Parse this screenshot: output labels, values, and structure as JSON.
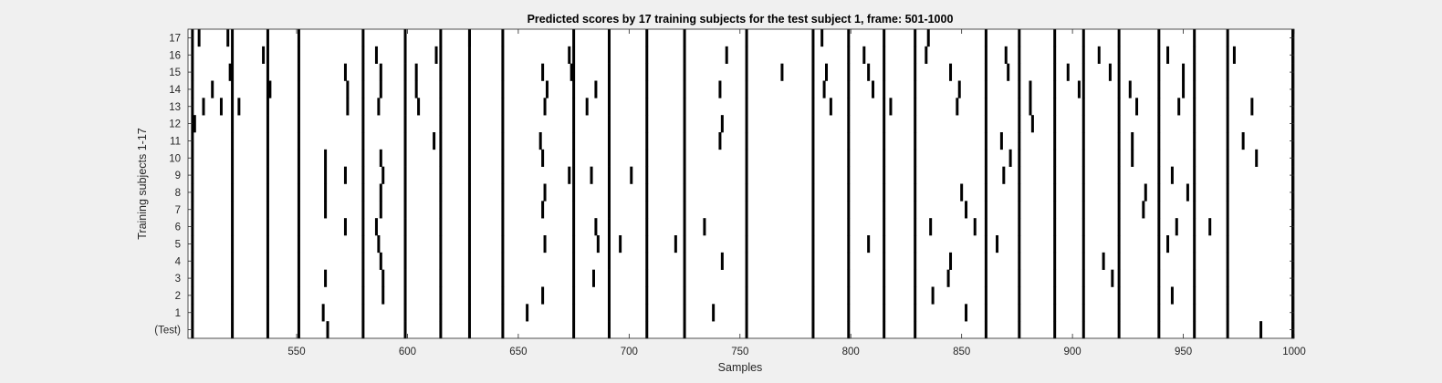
{
  "chart_data": {
    "type": "heatmap",
    "title": "Predicted scores by 17 training subjects for the test subject 1, frame: 501-1000",
    "xlabel": "Samples",
    "ylabel": "Training subjects 1-17",
    "xlim": [
      501,
      1000
    ],
    "xticks": [
      550,
      600,
      650,
      700,
      750,
      800,
      850,
      900,
      950,
      1000
    ],
    "rows": [
      "(Test)",
      "1",
      "2",
      "3",
      "4",
      "5",
      "6",
      "7",
      "8",
      "9",
      "10",
      "11",
      "12",
      "13",
      "14",
      "15",
      "16",
      "17"
    ],
    "grid": false,
    "background_color": "#ffffff",
    "mark_color": "#000000",
    "common_events": [
      503,
      521,
      537,
      551,
      580,
      599,
      615,
      628,
      643,
      675,
      691,
      708,
      725,
      753,
      783,
      799,
      815,
      829,
      861,
      876,
      892,
      905,
      921,
      939,
      955,
      970,
      1000
    ],
    "row_extra_events": {
      "(Test)": [
        564,
        985
      ],
      "1": [
        562,
        654,
        738,
        852
      ],
      "2": [
        589,
        661,
        837,
        945
      ],
      "3": [
        563,
        589,
        684,
        844,
        918
      ],
      "4": [
        588,
        742,
        845,
        914
      ],
      "5": [
        587,
        662,
        686,
        696,
        721,
        808,
        866,
        943
      ],
      "6": [
        572,
        586,
        685,
        734,
        836,
        856,
        947,
        962
      ],
      "7": [
        563,
        588,
        661,
        852,
        932
      ],
      "8": [
        563,
        588,
        662,
        850,
        933,
        952
      ],
      "9": [
        563,
        572,
        589,
        673,
        683,
        701,
        869,
        945
      ],
      "10": [
        563,
        588,
        661,
        872,
        927,
        983
      ],
      "11": [
        612,
        660,
        741,
        868,
        927,
        977
      ],
      "12": [
        504,
        742,
        882
      ],
      "13": [
        508,
        516,
        524,
        573,
        587,
        605,
        662,
        681,
        791,
        818,
        848,
        881,
        929,
        948,
        981
      ],
      "14": [
        512,
        538,
        573,
        588,
        604,
        663,
        685,
        741,
        788,
        810,
        849,
        881,
        903,
        926,
        950
      ],
      "15": [
        520,
        572,
        588,
        604,
        661,
        674,
        769,
        789,
        808,
        845,
        871,
        898,
        917,
        950
      ],
      "16": [
        535,
        586,
        613,
        673,
        744,
        806,
        834,
        870,
        912,
        943,
        973
      ],
      "17": [
        506,
        519,
        628,
        787,
        835
      ]
    }
  }
}
